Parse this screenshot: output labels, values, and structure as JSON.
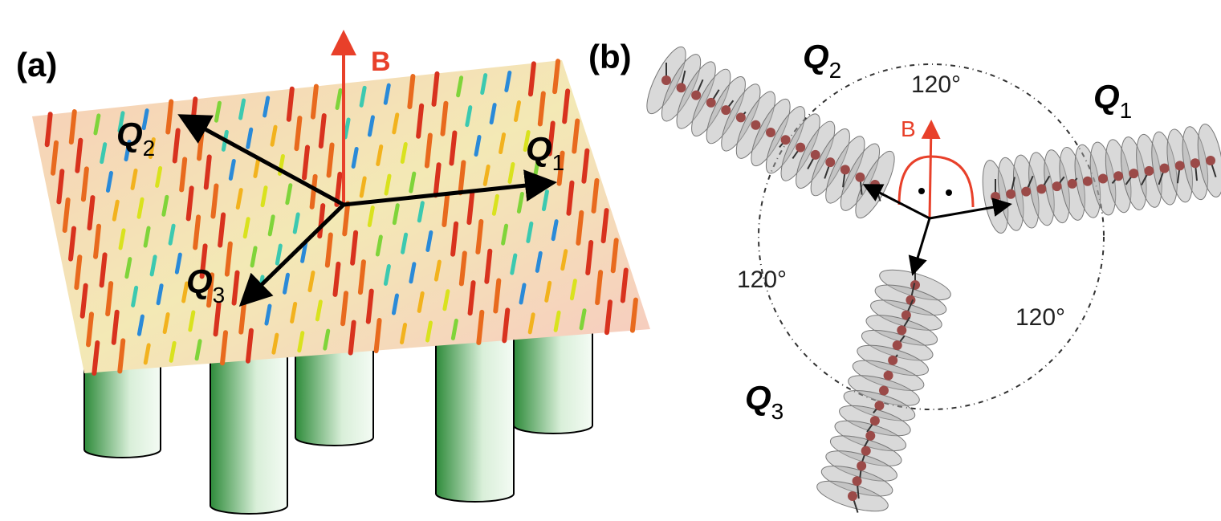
{
  "panel_a": {
    "label": "(a)",
    "field_label": "B",
    "vectors": [
      {
        "name": "Q",
        "subscript": "1"
      },
      {
        "name": "Q",
        "subscript": "2"
      },
      {
        "name": "Q",
        "subscript": "3"
      }
    ]
  },
  "panel_b": {
    "label": "(b)",
    "field_label": "B",
    "vectors": [
      {
        "name": "Q",
        "subscript": "1"
      },
      {
        "name": "Q",
        "subscript": "2"
      },
      {
        "name": "Q",
        "subscript": "3"
      }
    ],
    "angles": [
      "120°",
      "120°",
      "120°"
    ]
  }
}
